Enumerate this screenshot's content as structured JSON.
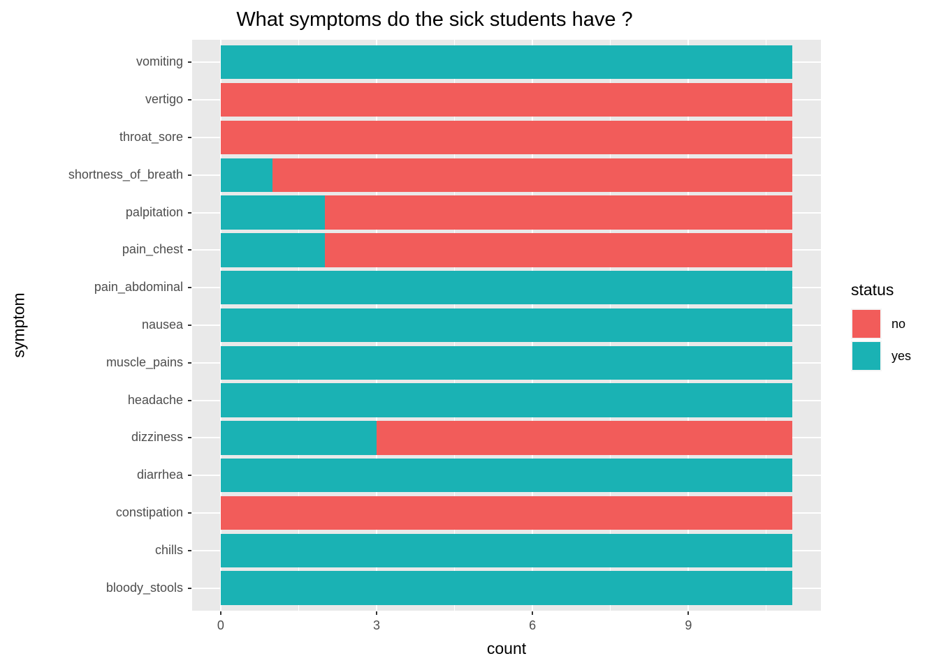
{
  "chart_data": {
    "type": "bar",
    "orientation": "horizontal",
    "stacked": true,
    "title": "What symptoms do the sick students have ?",
    "xlabel": "count",
    "ylabel": "symptom",
    "x_ticks": [
      0,
      3,
      6,
      9
    ],
    "xlim": [
      -0.55,
      11.55
    ],
    "bar_total": 11,
    "grid": {
      "major_x": [
        0,
        3,
        6,
        9
      ],
      "minor_x": [
        1.5,
        4.5,
        7.5,
        10.5
      ],
      "major_y": "one per category"
    },
    "categories": [
      "vomiting",
      "vertigo",
      "throat_sore",
      "shortness_of_breath",
      "palpitation",
      "pain_chest",
      "pain_abdominal",
      "nausea",
      "muscle_pains",
      "headache",
      "dizziness",
      "diarrhea",
      "constipation",
      "chills",
      "bloody_stools"
    ],
    "stack_order": [
      "yes",
      "no"
    ],
    "series": [
      {
        "name": "yes",
        "color": "#1AB2B4",
        "values": [
          11,
          0,
          0,
          1,
          2,
          2,
          11,
          11,
          11,
          11,
          3,
          11,
          0,
          11,
          11
        ]
      },
      {
        "name": "no",
        "color": "#F25C5A",
        "values": [
          0,
          11,
          11,
          10,
          9,
          9,
          0,
          0,
          0,
          0,
          8,
          0,
          11,
          0,
          0
        ]
      }
    ],
    "legend": {
      "title": "status",
      "entries": [
        {
          "label": "no",
          "color": "#F25C5A"
        },
        {
          "label": "yes",
          "color": "#1AB2B4"
        }
      ]
    },
    "colors": {
      "panel_bg": "#E9E9E9",
      "grid": "#FFFFFF",
      "tick_text": "#4D4D4D",
      "axis_text": "#000000",
      "tick_mark": "#333333"
    }
  }
}
